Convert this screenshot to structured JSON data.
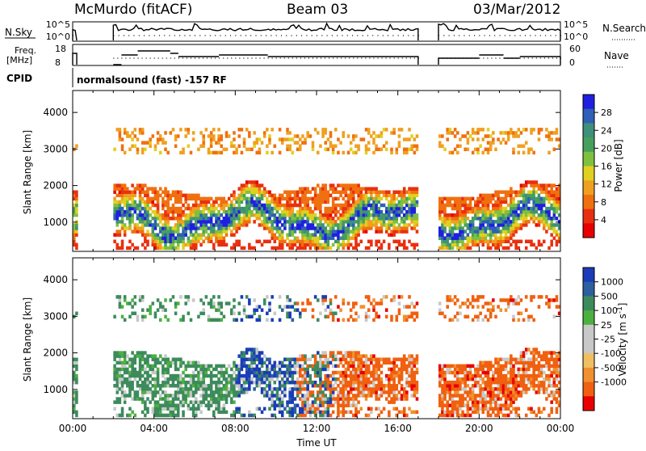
{
  "header": {
    "station": "McMurdo (fitACF)",
    "beam": "Beam 03",
    "date": "03/Mar/2012"
  },
  "top_panels": {
    "nsky_label": "N.Sky",
    "nsky_ticks": [
      "10^5",
      "10^0"
    ],
    "nsearch_label": "N.Search",
    "nsearch_ticks": [
      "10^5",
      "10^0"
    ],
    "freq_label_1": "Freq.",
    "freq_label_2": "[MHz]",
    "freq_ticks": [
      "18",
      "8"
    ],
    "nave_label": "Nave",
    "nave_ticks": [
      "60",
      "0"
    ],
    "cpid_label": "CPID",
    "cpid_text": "normalsound (fast) -157 RF"
  },
  "chart_data": [
    {
      "type": "heatmap",
      "name": "power-panel",
      "ylabel": "Slant Range [km]",
      "ylim": [
        200,
        4600
      ],
      "yticks": [
        "1000",
        "2000",
        "3000",
        "4000"
      ],
      "xlim": [
        0,
        24
      ],
      "data_gaps_hours": [
        [
          0.2,
          2.0
        ],
        [
          17.0,
          18.0
        ]
      ],
      "colorbar": {
        "label": "Power [dB]",
        "ticks": [
          "4",
          "8",
          "12",
          "16",
          "20",
          "24",
          "28"
        ],
        "colors": [
          "#1f1fe0",
          "#2f5fb8",
          "#3f8f7a",
          "#46a05c",
          "#7fc040",
          "#e0d020",
          "#f0a020",
          "#f07010",
          "#e83010",
          "#e80000"
        ]
      }
    },
    {
      "type": "heatmap",
      "name": "velocity-panel",
      "ylabel": "Slant Range [km]",
      "ylim": [
        200,
        4600
      ],
      "yticks": [
        "1000",
        "2000",
        "3000",
        "4000"
      ],
      "xlim": [
        0,
        24
      ],
      "colorbar": {
        "label": "Velocity [m s^-1]",
        "ticks": [
          "1000",
          "500",
          "100",
          "25",
          "-25",
          "-100",
          "-500",
          "-1000"
        ],
        "colors": [
          "#1a3cb8",
          "#2e5fa0",
          "#3d8b5c",
          "#4cb040",
          "#c8c8c8",
          "#c8c8c8",
          "#f0c060",
          "#f09030",
          "#f06010",
          "#e80000"
        ]
      }
    }
  ],
  "x_axis": {
    "ticks": [
      "00:00",
      "04:00",
      "08:00",
      "12:00",
      "16:00",
      "20:00",
      "00:00"
    ],
    "label": "Time UT"
  }
}
